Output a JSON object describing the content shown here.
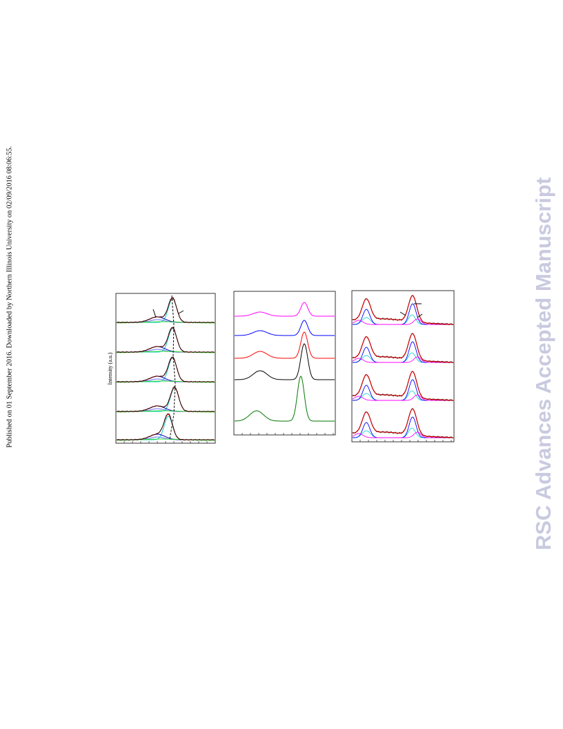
{
  "sidebar": {
    "published": "Published on 01 September 2016. Downloaded by Northern Illinois University on 02/09/2016 08:06:55."
  },
  "watermark": "RSC Advances Accepted Manuscript",
  "figure": {
    "y_axis_label": "Intensity (a.u.)"
  }
}
